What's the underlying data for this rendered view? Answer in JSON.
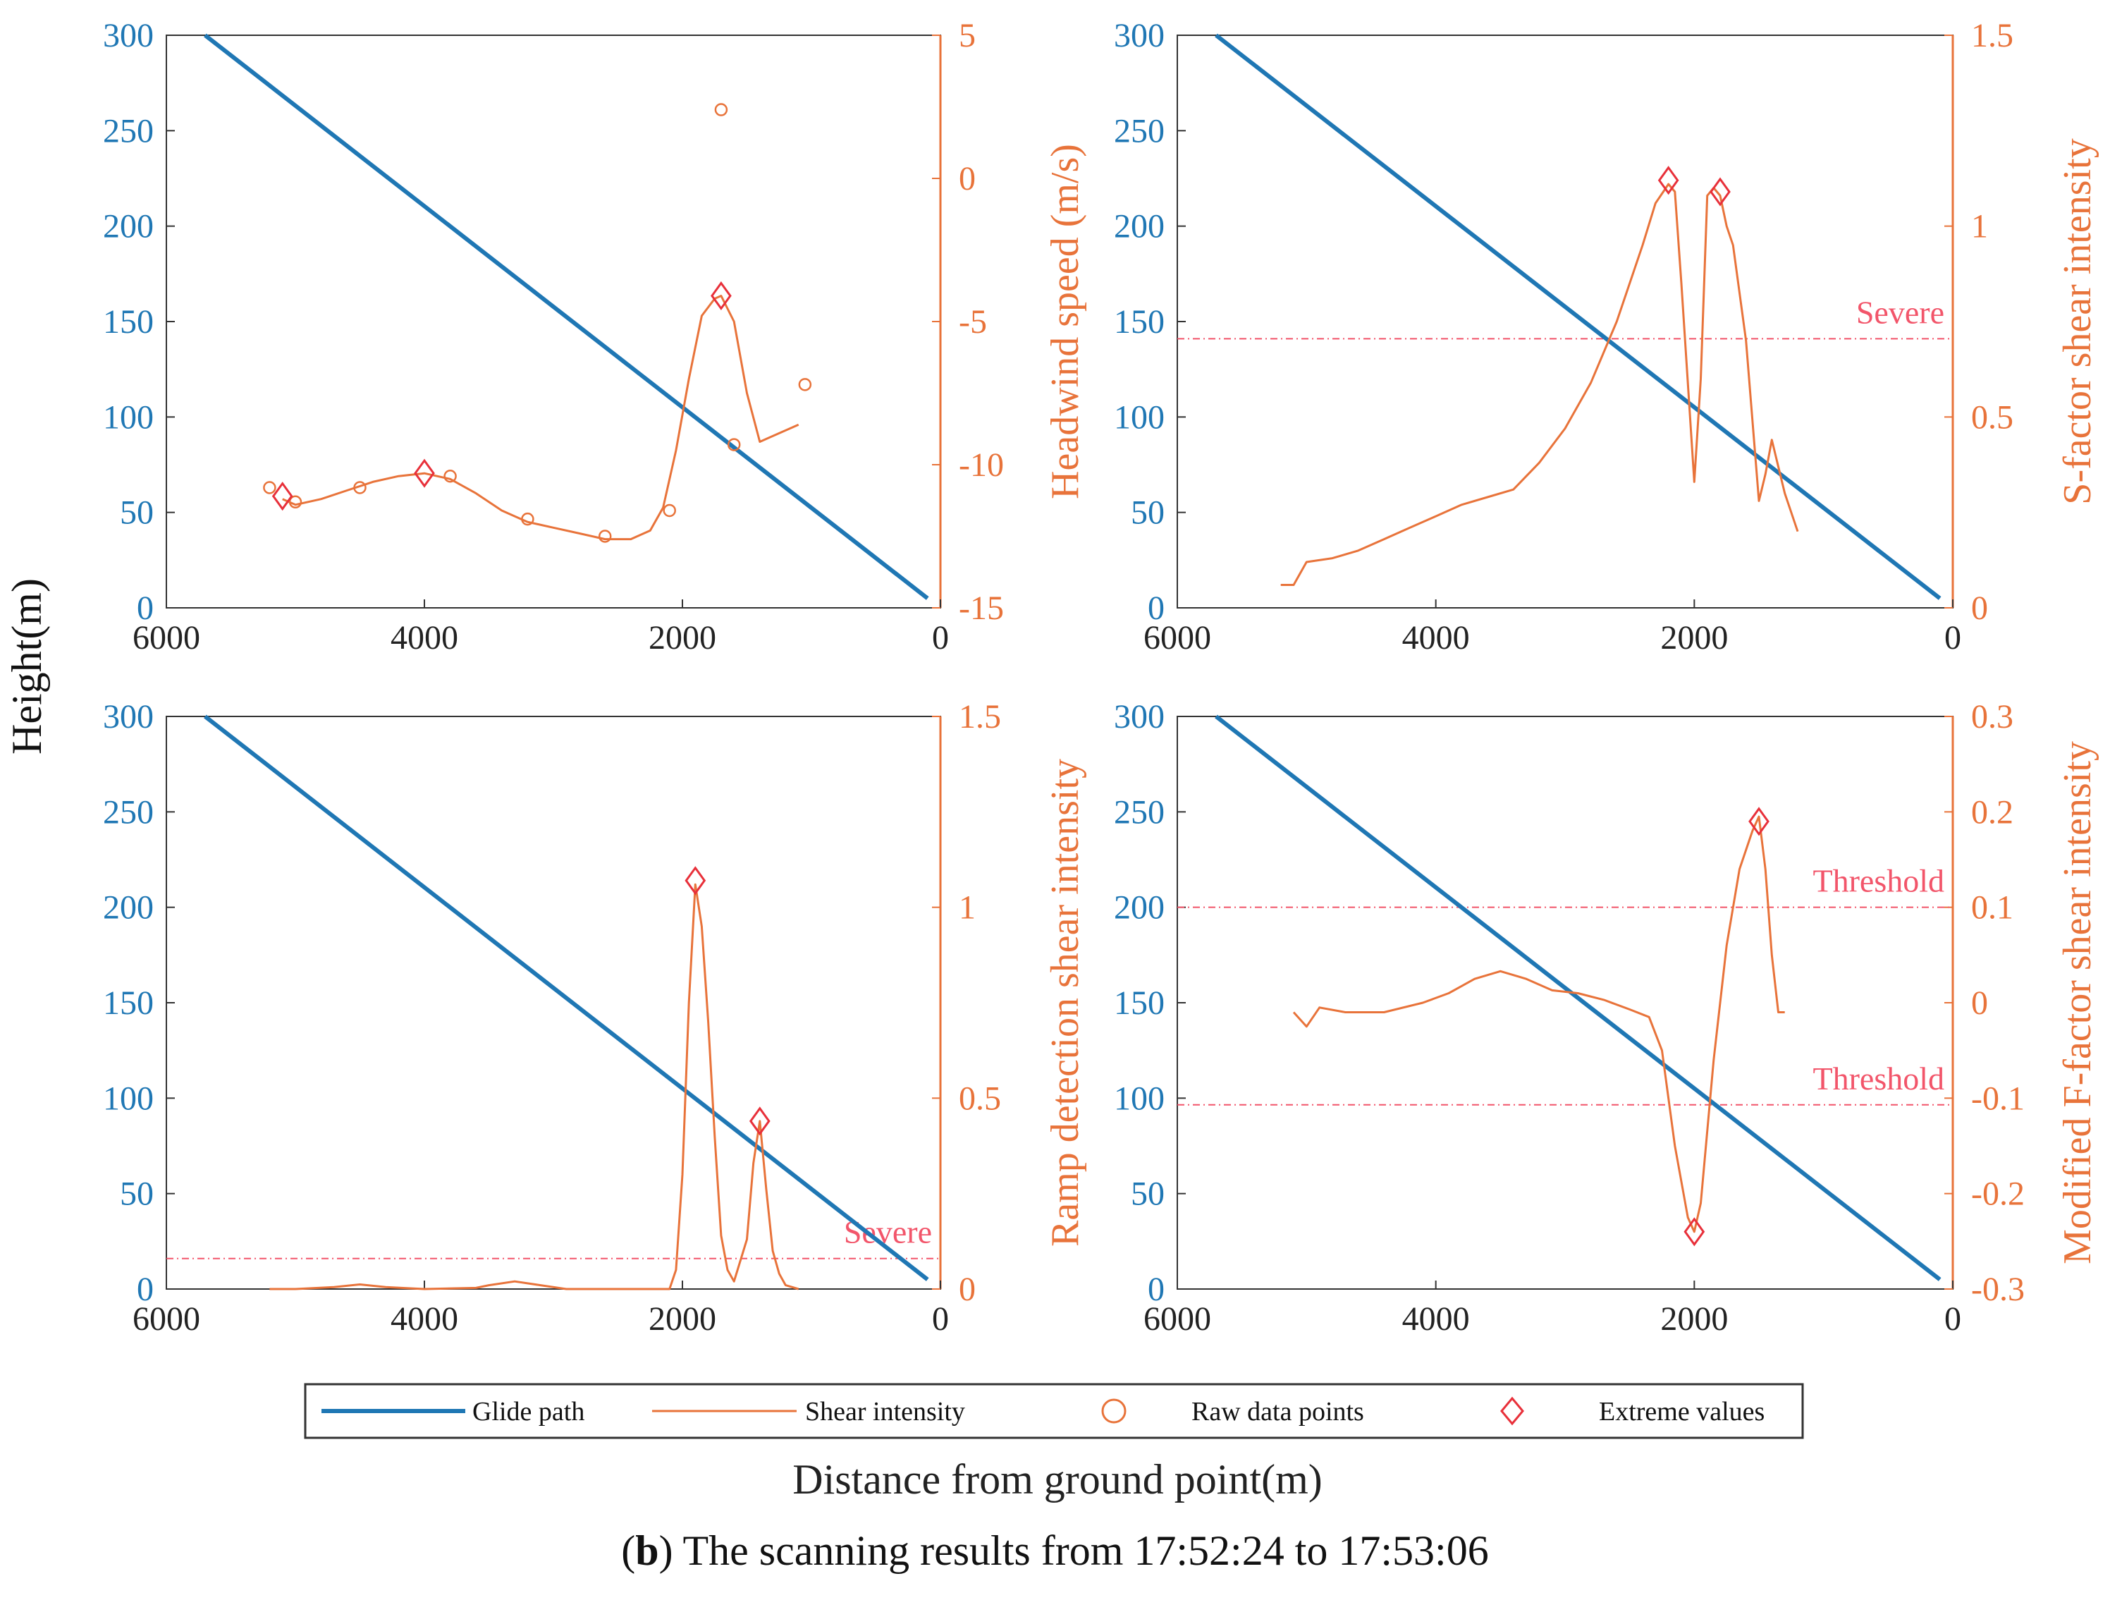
{
  "figure": {
    "shared_ylabel": "Height(m)",
    "shared_xlabel": "Distance from ground point(m)",
    "caption_letter": "b",
    "caption_text": ") The scanning results from 17:52:24 to 17:53:06",
    "colors": {
      "glide": "#1f77b4",
      "shear": "#e8733a",
      "extreme": "#e8303a",
      "threshold": "#f2556a",
      "axis": "#333333"
    }
  },
  "legend": {
    "glide_path": "Glide path",
    "shear_intensity": "Shear intensity",
    "raw_points": "Raw data points",
    "extreme_values": "Extreme values"
  },
  "chart_data": [
    {
      "id": "headwind",
      "type": "line",
      "title": "",
      "xlabel": "",
      "ylabel": "Height(m)",
      "y2label": "Headwind speed (m/s)",
      "xlim": [
        6000,
        0
      ],
      "xticks": [
        6000,
        4000,
        2000,
        0
      ],
      "ylim": [
        0,
        300
      ],
      "yticks": [
        0,
        50,
        100,
        150,
        200,
        250,
        300
      ],
      "y2lim": [
        -15,
        5
      ],
      "y2ticks": [
        -15,
        -10,
        -5,
        0,
        5
      ],
      "glide_path": {
        "x": [
          5700,
          100
        ],
        "y": [
          300,
          5
        ]
      },
      "series": [
        {
          "name": "Shear intensity",
          "axis": "right",
          "x": [
            5100,
            5000,
            4800,
            4600,
            4400,
            4200,
            4000,
            3800,
            3600,
            3400,
            3200,
            3000,
            2800,
            2600,
            2400,
            2250,
            2150,
            2050,
            1950,
            1850,
            1750,
            1700,
            1600,
            1500,
            1400,
            1300,
            1100
          ],
          "y": [
            -11.2,
            -11.4,
            -11.2,
            -10.9,
            -10.6,
            -10.4,
            -10.3,
            -10.5,
            -11.0,
            -11.6,
            -12.0,
            -12.2,
            -12.4,
            -12.6,
            -12.6,
            -12.3,
            -11.5,
            -9.5,
            -7.0,
            -4.8,
            -4.2,
            -4.1,
            -5.0,
            -7.5,
            -9.2,
            -9.0,
            -8.6
          ]
        },
        {
          "name": "Raw data points",
          "axis": "right",
          "marker": "circle",
          "x": [
            5200,
            5000,
            4500,
            3800,
            3200,
            2600,
            2100,
            1700,
            1600,
            1050
          ],
          "y": [
            -10.8,
            -11.3,
            -10.8,
            -10.4,
            -11.9,
            -12.5,
            -11.6,
            2.4,
            -9.3,
            -7.2
          ]
        },
        {
          "name": "Extreme values",
          "axis": "right",
          "marker": "diamond",
          "x": [
            5100,
            4000,
            1700
          ],
          "y": [
            -11.1,
            -10.3,
            -4.1
          ]
        }
      ],
      "annotations": []
    },
    {
      "id": "sfactor",
      "type": "line",
      "title": "",
      "xlabel": "",
      "ylabel": "",
      "y2label": "S-factor shear intensity",
      "xlim": [
        6000,
        0
      ],
      "xticks": [
        6000,
        4000,
        2000,
        0
      ],
      "ylim": [
        0,
        300
      ],
      "yticks": [
        0,
        50,
        100,
        150,
        200,
        250,
        300
      ],
      "y2lim": [
        0,
        1.5
      ],
      "y2ticks": [
        0,
        0.5,
        1,
        1.5
      ],
      "glide_path": {
        "x": [
          5700,
          100
        ],
        "y": [
          300,
          5
        ]
      },
      "series": [
        {
          "name": "Shear intensity",
          "axis": "right",
          "x": [
            5200,
            5100,
            5000,
            4800,
            4600,
            4400,
            4200,
            4000,
            3800,
            3600,
            3400,
            3200,
            3000,
            2800,
            2600,
            2400,
            2300,
            2200,
            2150,
            2100,
            2000,
            1950,
            1900,
            1850,
            1800,
            1750,
            1700,
            1600,
            1500,
            1450,
            1400,
            1300,
            1200
          ],
          "y": [
            0.06,
            0.06,
            0.12,
            0.13,
            0.15,
            0.18,
            0.21,
            0.24,
            0.27,
            0.29,
            0.31,
            0.38,
            0.47,
            0.59,
            0.75,
            0.95,
            1.06,
            1.11,
            1.09,
            0.85,
            0.33,
            0.6,
            1.08,
            1.1,
            1.08,
            1.0,
            0.95,
            0.7,
            0.28,
            0.35,
            0.44,
            0.3,
            0.2
          ]
        },
        {
          "name": "Extreme values",
          "axis": "right",
          "marker": "diamond",
          "x": [
            2200,
            1800
          ],
          "y": [
            1.12,
            1.09
          ]
        }
      ],
      "thresholds": [
        {
          "y": 0.705,
          "label": "Severe"
        }
      ]
    },
    {
      "id": "ramp",
      "type": "line",
      "title": "",
      "xlabel": "",
      "ylabel": "Height(m)",
      "y2label": "Ramp detection shear intensity",
      "xlim": [
        6000,
        0
      ],
      "xticks": [
        6000,
        4000,
        2000,
        0
      ],
      "ylim": [
        0,
        300
      ],
      "yticks": [
        0,
        50,
        100,
        150,
        200,
        250,
        300
      ],
      "y2lim": [
        0,
        1.5
      ],
      "y2ticks": [
        0,
        0.5,
        1,
        1.5
      ],
      "glide_path": {
        "x": [
          5700,
          100
        ],
        "y": [
          300,
          5
        ]
      },
      "series": [
        {
          "name": "Shear intensity",
          "axis": "right",
          "x": [
            5200,
            5000,
            4700,
            4500,
            4300,
            4000,
            3600,
            3500,
            3300,
            3100,
            2900,
            2600,
            2300,
            2100,
            2050,
            2000,
            1950,
            1900,
            1850,
            1800,
            1750,
            1700,
            1650,
            1600,
            1500,
            1450,
            1400,
            1350,
            1300,
            1250,
            1200,
            1100
          ],
          "y": [
            0.0,
            0.0,
            0.005,
            0.012,
            0.005,
            0.0,
            0.003,
            0.01,
            0.02,
            0.01,
            0.0,
            0.0,
            0.0,
            0.0,
            0.05,
            0.3,
            0.75,
            1.06,
            0.95,
            0.7,
            0.4,
            0.14,
            0.05,
            0.02,
            0.13,
            0.33,
            0.44,
            0.26,
            0.1,
            0.04,
            0.01,
            0.0
          ]
        },
        {
          "name": "Extreme values",
          "axis": "right",
          "marker": "diamond",
          "x": [
            1900,
            1400
          ],
          "y": [
            1.07,
            0.44
          ]
        }
      ],
      "thresholds": [
        {
          "y": 0.08,
          "label": "Severe"
        }
      ]
    },
    {
      "id": "ffactor",
      "type": "line",
      "title": "",
      "xlabel": "",
      "ylabel": "",
      "y2label": "Modified F-factor shear intensity",
      "xlim": [
        6000,
        0
      ],
      "xticks": [
        6000,
        4000,
        2000,
        0
      ],
      "ylim": [
        0,
        300
      ],
      "yticks": [
        0,
        50,
        100,
        150,
        200,
        250,
        300
      ],
      "y2lim": [
        -0.3,
        0.3
      ],
      "y2ticks": [
        -0.3,
        -0.2,
        -0.1,
        0,
        0.1,
        0.2,
        0.3
      ],
      "glide_path": {
        "x": [
          5700,
          100
        ],
        "y": [
          300,
          5
        ]
      },
      "series": [
        {
          "name": "Shear intensity",
          "axis": "right",
          "x": [
            5100,
            5000,
            4900,
            4700,
            4400,
            4100,
            3900,
            3700,
            3500,
            3300,
            3100,
            2900,
            2700,
            2500,
            2350,
            2250,
            2150,
            2050,
            2000,
            1950,
            1850,
            1750,
            1650,
            1550,
            1500,
            1450,
            1400,
            1350,
            1300
          ],
          "y": [
            -0.01,
            -0.025,
            -0.005,
            -0.01,
            -0.01,
            0.0,
            0.01,
            0.025,
            0.033,
            0.025,
            0.013,
            0.01,
            0.003,
            -0.007,
            -0.015,
            -0.05,
            -0.15,
            -0.225,
            -0.24,
            -0.21,
            -0.06,
            0.06,
            0.14,
            0.18,
            0.195,
            0.14,
            0.05,
            -0.01,
            -0.01
          ]
        },
        {
          "name": "Extreme values",
          "axis": "right",
          "marker": "diamond",
          "x": [
            2000,
            1500
          ],
          "y": [
            -0.24,
            0.19
          ]
        }
      ],
      "thresholds": [
        {
          "y": 0.1,
          "label": "Threshold"
        },
        {
          "y": -0.107,
          "label": "Threshold"
        }
      ]
    }
  ]
}
